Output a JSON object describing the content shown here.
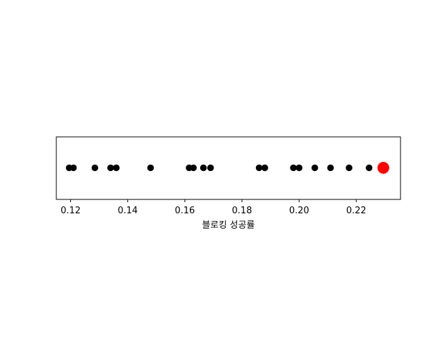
{
  "chart_data": {
    "type": "scatter",
    "xlabel": "블로킹 성공률",
    "ylabel": "",
    "xlim": [
      0.115,
      0.2355
    ],
    "xticks": [
      "0.12",
      "0.14",
      "0.16",
      "0.18",
      "0.20",
      "0.22"
    ],
    "tick_values": [
      0.12,
      0.14,
      0.16,
      0.18,
      0.2,
      0.22
    ],
    "grid": false,
    "series": [
      {
        "color": "#000000",
        "x": [
          0.1195,
          0.121,
          0.1285,
          0.134,
          0.136,
          0.148,
          0.1615,
          0.163,
          0.1665,
          0.169,
          0.186,
          0.188,
          0.198,
          0.2,
          0.2055,
          0.211,
          0.2175,
          0.2245
        ]
      },
      {
        "color": "#ff0000",
        "x": [
          0.2295
        ]
      }
    ]
  }
}
